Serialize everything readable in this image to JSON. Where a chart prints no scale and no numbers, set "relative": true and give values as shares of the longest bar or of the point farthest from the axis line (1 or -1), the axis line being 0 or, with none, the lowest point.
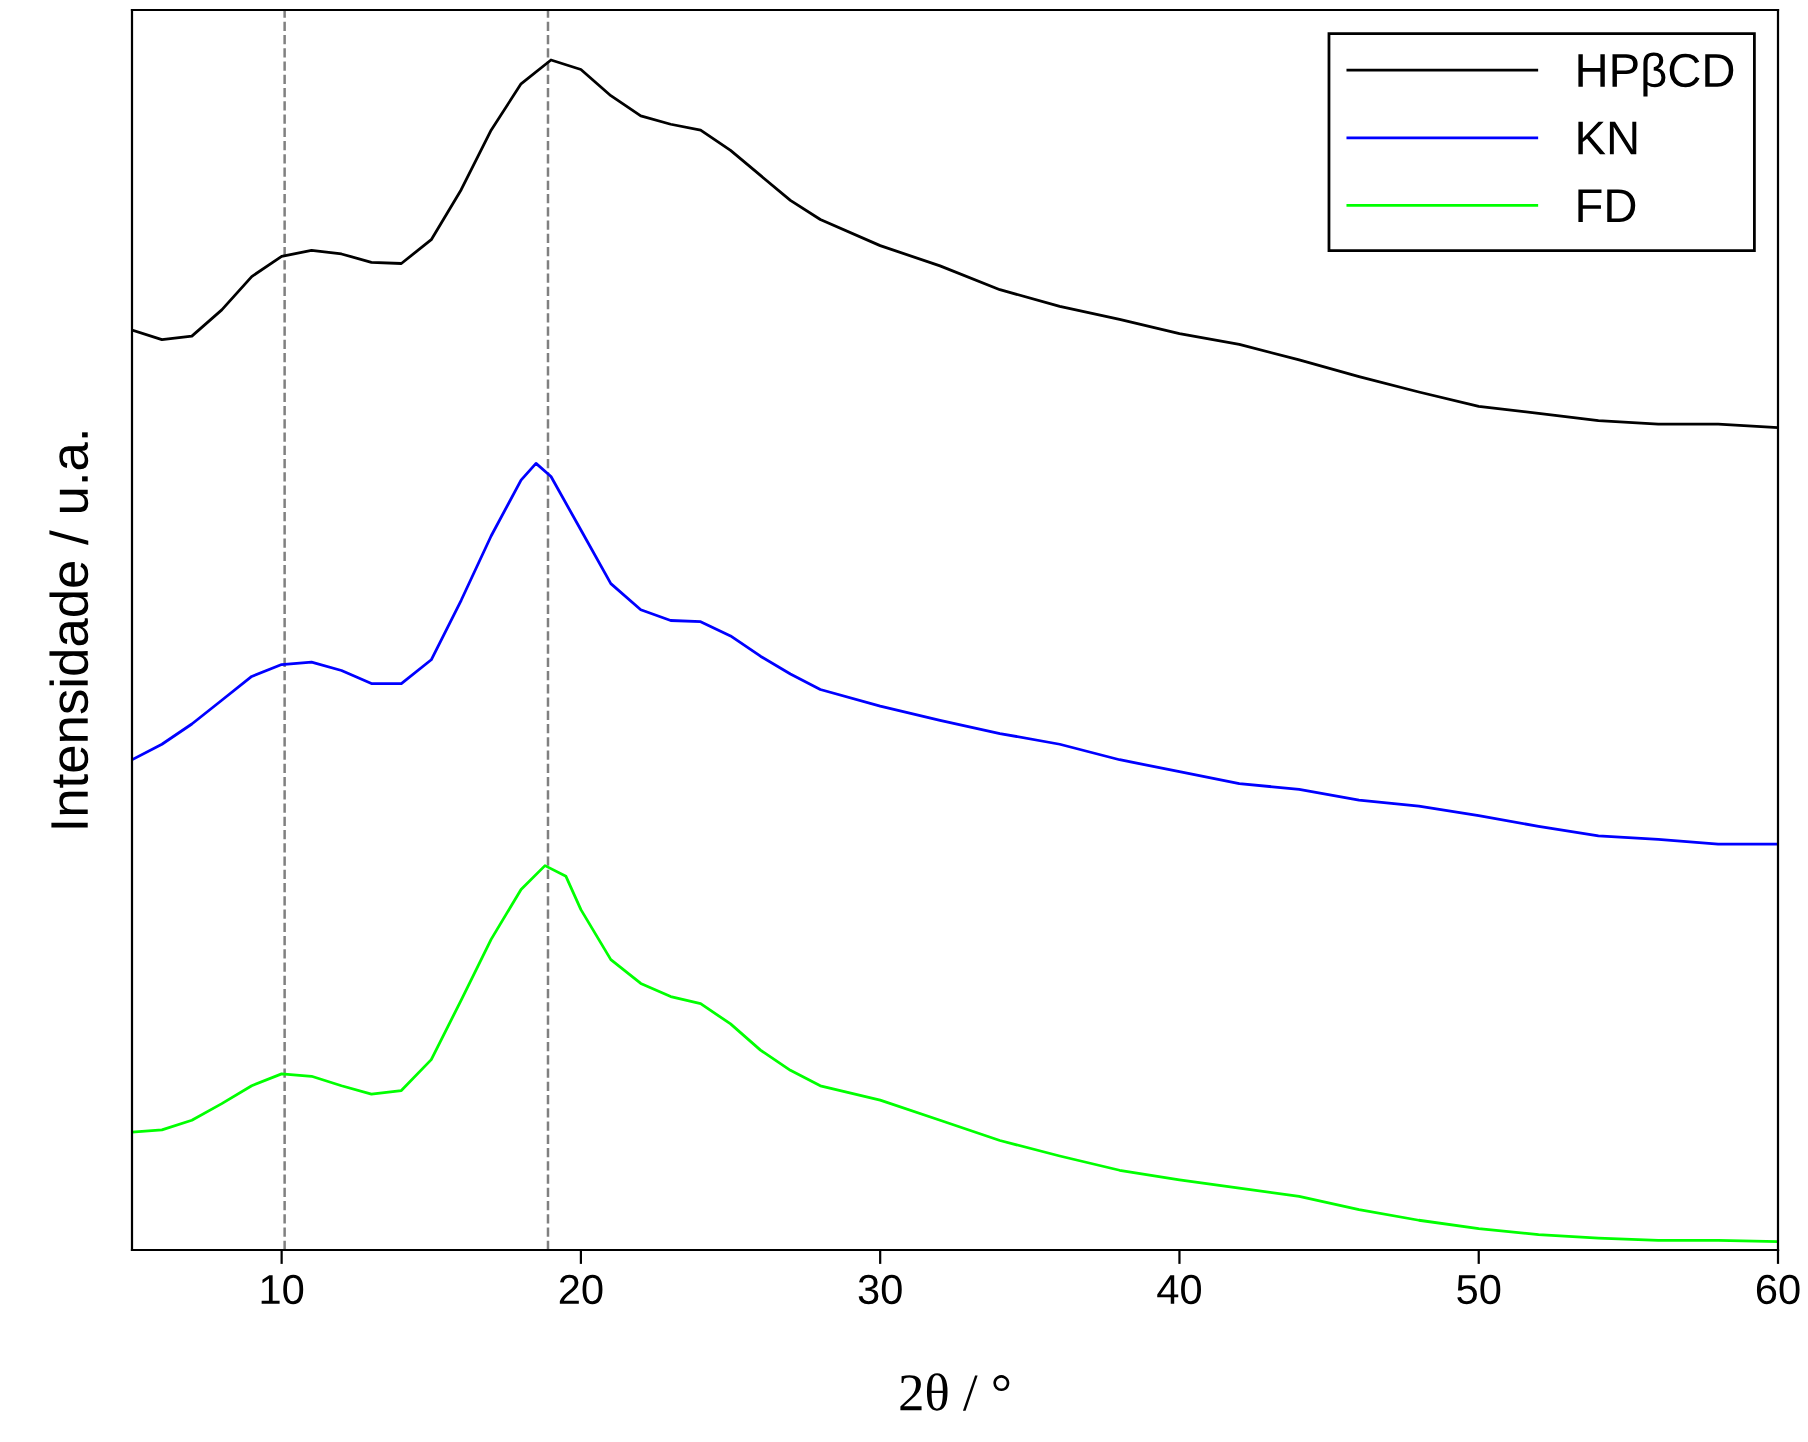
{
  "chart_data": {
    "type": "line",
    "relative": true,
    "xlabel": "2θ / °",
    "ylabel": "Intensidade / u.a.",
    "xlim": [
      5,
      60
    ],
    "xticks": [
      10,
      20,
      30,
      40,
      50,
      60
    ],
    "legend": "top right",
    "tick_labels": "x",
    "grid": false,
    "line_style": "solid",
    "marker": "none",
    "ref_lines": [
      {
        "axis": "x",
        "value": 10.1,
        "color": "#808080",
        "line_style": "dashed"
      },
      {
        "axis": "x",
        "value": 18.9,
        "color": "#808080",
        "line_style": "dashed"
      }
    ],
    "x": [
      5,
      6,
      7,
      8,
      9,
      10,
      11,
      12,
      13,
      14,
      15,
      16,
      17,
      18,
      19,
      20,
      21,
      22,
      23,
      24,
      25,
      26,
      27,
      28,
      30,
      32,
      34,
      36,
      38,
      40,
      42,
      44,
      46,
      48,
      50,
      52,
      54,
      56,
      58,
      60
    ],
    "series": [
      {
        "name": "HPβCD",
        "color": "#000000",
        "values": [
          0.773,
          0.765,
          0.768,
          0.79,
          0.818,
          0.835,
          0.84,
          0.837,
          0.83,
          0.829,
          0.849,
          0.891,
          0.941,
          0.98,
          1.0,
          0.992,
          0.97,
          0.953,
          0.946,
          0.941,
          0.924,
          0.903,
          0.882,
          0.866,
          0.844,
          0.827,
          0.807,
          0.793,
          0.782,
          0.77,
          0.761,
          0.748,
          0.734,
          0.721,
          0.709,
          0.703,
          0.697,
          0.694,
          0.694,
          0.691
        ]
      },
      {
        "name": "KN",
        "color": "#0000ff",
        "x": [
          5,
          6,
          7,
          8,
          9,
          10,
          11,
          12,
          13,
          14,
          15,
          16,
          17,
          18,
          18.5,
          19,
          20,
          21,
          22,
          23,
          24,
          25,
          26,
          27,
          28,
          30,
          32,
          34,
          36,
          38,
          40,
          42,
          44,
          46,
          48,
          50,
          52,
          54,
          56,
          58,
          60
        ],
        "values": [
          0.412,
          0.425,
          0.442,
          0.462,
          0.482,
          0.492,
          0.494,
          0.487,
          0.476,
          0.476,
          0.496,
          0.546,
          0.6,
          0.647,
          0.661,
          0.65,
          0.605,
          0.56,
          0.538,
          0.529,
          0.528,
          0.516,
          0.499,
          0.484,
          0.471,
          0.457,
          0.445,
          0.434,
          0.425,
          0.412,
          0.402,
          0.392,
          0.387,
          0.378,
          0.373,
          0.365,
          0.356,
          0.348,
          0.345,
          0.341,
          0.341
        ]
      },
      {
        "name": "FD",
        "color": "#00ff00",
        "x": [
          5,
          6,
          7,
          8,
          9,
          10,
          11,
          12,
          13,
          14,
          15,
          16,
          17,
          18,
          18.8,
          19.5,
          20,
          21,
          22,
          23,
          24,
          25,
          26,
          27,
          28,
          30,
          32,
          34,
          36,
          38,
          40,
          42,
          44,
          46,
          48,
          50,
          52,
          54,
          56,
          58,
          60
        ],
        "values": [
          0.099,
          0.101,
          0.109,
          0.123,
          0.138,
          0.148,
          0.146,
          0.138,
          0.131,
          0.134,
          0.16,
          0.21,
          0.261,
          0.303,
          0.323,
          0.314,
          0.286,
          0.244,
          0.224,
          0.213,
          0.207,
          0.19,
          0.168,
          0.151,
          0.138,
          0.126,
          0.109,
          0.092,
          0.079,
          0.067,
          0.059,
          0.052,
          0.045,
          0.034,
          0.025,
          0.018,
          0.013,
          0.01,
          0.008,
          0.008,
          0.007
        ]
      }
    ]
  }
}
